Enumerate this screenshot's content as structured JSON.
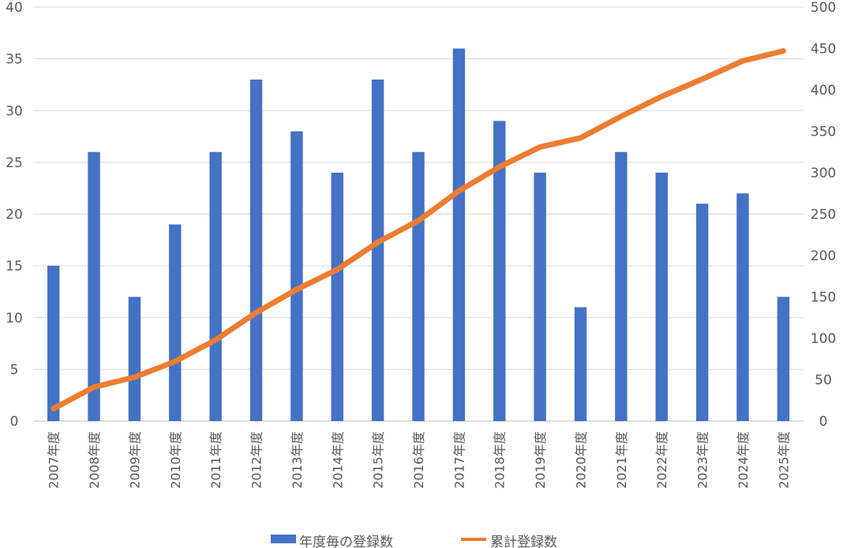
{
  "chart_data": {
    "type": "bar",
    "categories": [
      "2007年度",
      "2008年度",
      "2009年度",
      "2010年度",
      "2011年度",
      "2012年度",
      "2013年度",
      "2014年度",
      "2015年度",
      "2016年度",
      "2017年度",
      "2018年度",
      "2019年度",
      "2020年度",
      "2021年度",
      "2022年度",
      "2023年度",
      "2024年度",
      "2025年度"
    ],
    "series": [
      {
        "name": "年度毎の登録数",
        "type": "bar",
        "axis": "left",
        "color": "#4472C4",
        "values": [
          15,
          26,
          12,
          19,
          26,
          33,
          28,
          24,
          33,
          26,
          36,
          29,
          24,
          11,
          26,
          24,
          21,
          22,
          12
        ]
      },
      {
        "name": "累計登録数",
        "type": "line",
        "axis": "right",
        "color": "#ED7D31",
        "values": [
          15,
          41,
          53,
          72,
          98,
          131,
          159,
          183,
          216,
          242,
          278,
          307,
          331,
          342,
          368,
          392,
          413,
          435,
          447
        ]
      }
    ],
    "y_left": {
      "min": 0,
      "max": 40,
      "step": 5,
      "ticks": [
        "0",
        "5",
        "10",
        "15",
        "20",
        "25",
        "30",
        "35",
        "40"
      ]
    },
    "y_right": {
      "min": 0,
      "max": 500,
      "step": 50,
      "ticks": [
        "0",
        "50",
        "100",
        "150",
        "200",
        "250",
        "300",
        "350",
        "400",
        "450",
        "500"
      ]
    },
    "grid": true,
    "legend_position": "bottom",
    "title": "",
    "xlabel": "",
    "ylabel": ""
  }
}
